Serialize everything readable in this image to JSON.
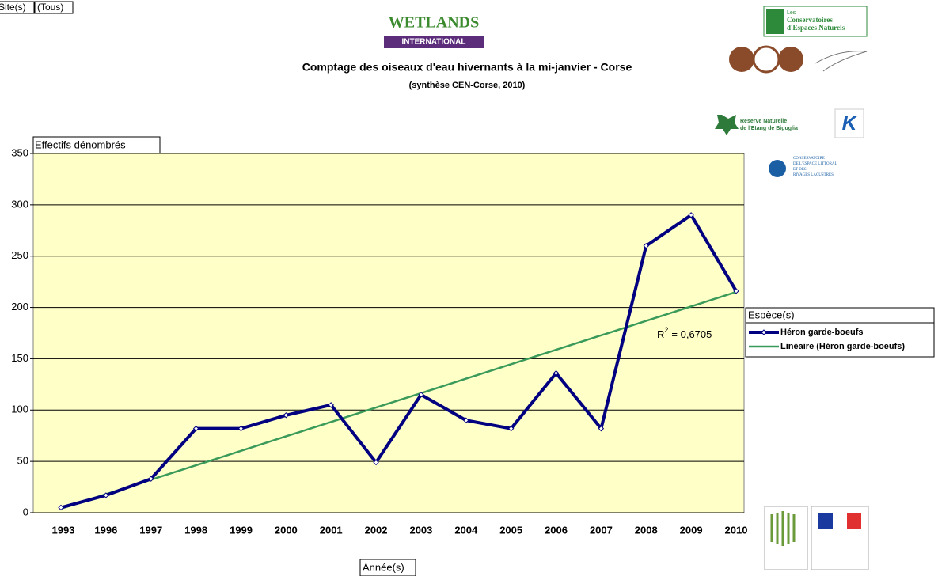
{
  "chart_data": {
    "type": "line",
    "title": "Comptage des oiseaux d'eau hivernants à la mi-janvier - Corse",
    "subtitle": "(synthèse CEN-Corse, 2010)",
    "filter_field": "Site(s)",
    "filter_value": "(Tous)",
    "y_axis_label": "Effectifs dénombrés",
    "x_axis_label": "Année(s)",
    "legend_title": "Espèce(s)",
    "categories": [
      "1993",
      "1996",
      "1997",
      "1998",
      "1999",
      "2000",
      "2001",
      "2002",
      "2003",
      "2004",
      "2005",
      "2006",
      "2007",
      "2008",
      "2009",
      "2010"
    ],
    "series": [
      {
        "name": "Héron garde-boeufs",
        "color": "#000080",
        "values": [
          5,
          17,
          33,
          82,
          82,
          95,
          105,
          49,
          115,
          90,
          82,
          136,
          82,
          260,
          290,
          216
        ]
      },
      {
        "name": "Linéaire (Héron garde-boeufs)",
        "color": "#3a9a5a",
        "values": [
          4.0,
          18.1,
          32.1,
          46.2,
          60.3,
          74.4,
          88.4,
          102.5,
          116.5,
          130.6,
          144.7,
          158.8,
          172.8,
          186.9,
          201.0,
          215.0
        ]
      }
    ],
    "annotation": {
      "base": "R",
      "sup": "2",
      "rest": "= 0,6705"
    },
    "ylim": [
      0,
      350
    ],
    "yticks": [
      0,
      50,
      100,
      150,
      200,
      250,
      300,
      350
    ],
    "grid": true,
    "plot_color": "#ffffc8",
    "legend_position": "right"
  },
  "logos": {
    "wetlands": "WETLANDS",
    "wetlands_sub": "INTERNATIONAL",
    "cen": [
      "Les",
      "Conservatoires",
      "d'Espaces Naturels"
    ],
    "reserve": [
      "Réserve Naturelle",
      "de l'Etang de Biguglia"
    ],
    "littoral": [
      "CONSERVATOIRE",
      "DE L'ESPACE LITTORAL",
      "ET DES",
      "RIVAGES LACUSTRES"
    ]
  }
}
